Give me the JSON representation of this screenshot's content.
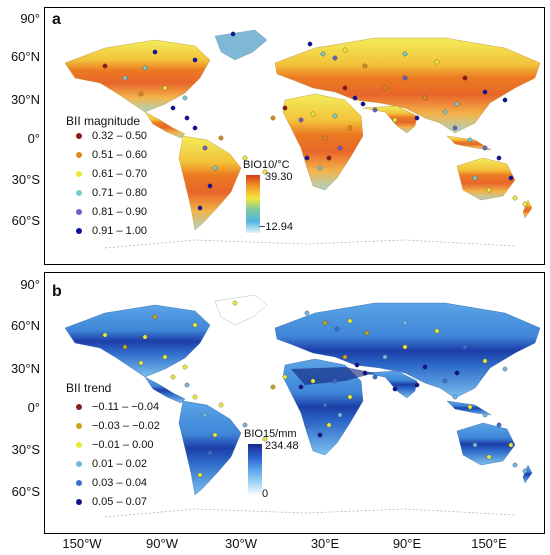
{
  "panel_a": {
    "letter": "a",
    "legend_title": "BII magnitude",
    "legend": [
      {
        "label": "0.32 – 0.50",
        "color": "#8b1a1a"
      },
      {
        "label": "0.51 – 0.60",
        "color": "#d98a1e"
      },
      {
        "label": "0.61 – 0.70",
        "color": "#e8e838"
      },
      {
        "label": "0.71 – 0.80",
        "color": "#79c9c9"
      },
      {
        "label": "0.81 – 0.90",
        "color": "#6a5fc6"
      },
      {
        "label": "0.91 – 1.00",
        "color": "#1010a0"
      }
    ],
    "colorbar_title": "BIO10/°C",
    "colorbar_max": "39.30",
    "colorbar_min": "−12.94",
    "colorbar_colors": [
      "#d33a1a",
      "#f39a2a",
      "#f5e63c",
      "#7ec8a0",
      "#4fb5e0",
      "#e4f4fc"
    ]
  },
  "panel_b": {
    "letter": "b",
    "legend_title": "BII trend",
    "legend": [
      {
        "label": "−0.11 – −0.04",
        "color": "#8b1a1a"
      },
      {
        "label": "−0.03 – −0.02",
        "color": "#c9a21e"
      },
      {
        "label": "−0.01 – 0.00",
        "color": "#e8e838"
      },
      {
        "label": "0.01 – 0.02",
        "color": "#6fb7e0"
      },
      {
        "label": "0.03 – 0.04",
        "color": "#3a6fd1"
      },
      {
        "label": "0.05 – 0.07",
        "color": "#101090"
      }
    ],
    "colorbar_title": "BIO15/mm",
    "colorbar_max": "234.48",
    "colorbar_min": "0",
    "colorbar_colors": [
      "#1a2a8a",
      "#2a5fd0",
      "#5aa6ea",
      "#a6d6f6",
      "#ffffff"
    ]
  },
  "lat_labels": [
    "90°",
    "60°N",
    "30°N",
    "0°",
    "30°S",
    "60°S"
  ],
  "lon_labels": [
    "150°W",
    "90°W",
    "30°W",
    "30°E",
    "90°E",
    "150°E"
  ]
}
